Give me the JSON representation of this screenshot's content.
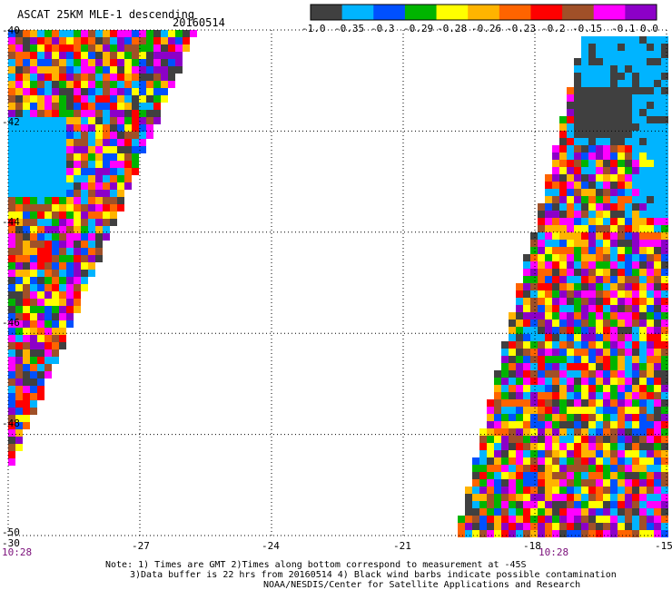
{
  "header": {
    "title": "ASCAT 25KM MLE-1 descending",
    "date": "20160514"
  },
  "colorbar": {
    "labels": [
      "-1.0",
      "-0.35",
      "-0.3",
      "-0.29",
      "-0.28",
      "-0.26",
      "-0.23",
      "-0.2",
      "-0.15",
      "-0.1",
      "0.0"
    ],
    "colors": [
      "#404040",
      "#00b4ff",
      "#0050ff",
      "#00b400",
      "#ffff00",
      "#ffb400",
      "#ff6400",
      "#ff0000",
      "#a05028",
      "#ff00ff",
      "#8c00c8"
    ]
  },
  "map": {
    "x_ticks": [
      "-30",
      "-27",
      "-24",
      "-21",
      "-18",
      "-15"
    ],
    "y_ticks": [
      "-40",
      "-42",
      "-44",
      "-46",
      "-48",
      "-50"
    ],
    "lon_range": [
      -30,
      -15
    ],
    "lat_range": [
      -50,
      -40
    ],
    "grid": "dotted",
    "time_labels": [
      {
        "text": "10:28",
        "lon": -30
      },
      {
        "text": "10:28",
        "lon": -17.8
      }
    ]
  },
  "notes": {
    "line1": "Note: 1) Times are GMT 2)Times along bottom correspond to measurement at -45S",
    "line2": "3)Data buffer is 22 hrs from 20160514 4) Black wind barbs indicate possible contamination",
    "line3": "NOAA/NESDIS/Center for Satellite Applications and Research"
  }
}
